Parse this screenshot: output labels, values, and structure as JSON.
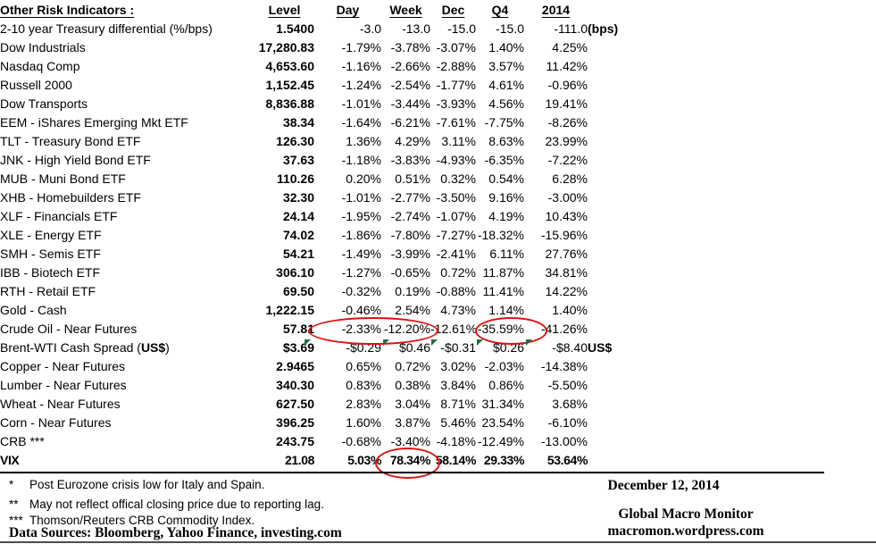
{
  "table": {
    "title": "Other Risk Indicators :",
    "columns": [
      "Level",
      "Day",
      "Week",
      "Dec",
      "Q4",
      "2014"
    ],
    "rows": [
      {
        "label": "2-10 year Treasury differential (%/bps)",
        "level": "1.5400",
        "day": "-3.0",
        "week": "-13.0",
        "dec": "-15.0",
        "q4": "-15.0",
        "y2014": "-111.0",
        "note": "(bps)"
      },
      {
        "label": "Dow Industrials",
        "level": "17,280.83",
        "day": "-1.79%",
        "week": "-3.78%",
        "dec": "-3.07%",
        "q4": "1.40%",
        "y2014": "4.25%"
      },
      {
        "label": "Nasdaq Comp",
        "level": "4,653.60",
        "day": "-1.16%",
        "week": "-2.66%",
        "dec": "-2.88%",
        "q4": "3.57%",
        "y2014": "11.42%"
      },
      {
        "label": "Russell 2000",
        "level": "1,152.45",
        "day": "-1.24%",
        "week": "-2.54%",
        "dec": "-1.77%",
        "q4": "4.61%",
        "y2014": "-0.96%"
      },
      {
        "label": "Dow Transports",
        "level": "8,836.88",
        "day": "-1.01%",
        "week": "-3.44%",
        "dec": "-3.93%",
        "q4": "4.56%",
        "y2014": "19.41%"
      },
      {
        "label": "EEM - iShares Emerging Mkt ETF",
        "level": "38.34",
        "day": "-1.64%",
        "week": "-6.21%",
        "dec": "-7.61%",
        "q4": "-7.75%",
        "y2014": "-8.26%"
      },
      {
        "label": "TLT - Treasury Bond ETF",
        "level": "126.30",
        "day": "1.36%",
        "week": "4.29%",
        "dec": "3.11%",
        "q4": "8.63%",
        "y2014": "23.99%"
      },
      {
        "label": "JNK - High Yield Bond ETF",
        "level": "37.63",
        "day": "-1.18%",
        "week": "-3.83%",
        "dec": "-4.93%",
        "q4": "-6.35%",
        "y2014": "-7.22%"
      },
      {
        "label": "MUB - Muni Bond ETF",
        "level": "110.26",
        "day": "0.20%",
        "week": "0.51%",
        "dec": "0.32%",
        "q4": "0.54%",
        "y2014": "6.28%"
      },
      {
        "label": "XHB - Homebuilders ETF",
        "level": "32.30",
        "day": "-1.01%",
        "week": "-2.77%",
        "dec": "-3.50%",
        "q4": "9.16%",
        "y2014": "-3.00%"
      },
      {
        "label": "XLF - Financials ETF",
        "level": "24.14",
        "day": "-1.95%",
        "week": "-2.74%",
        "dec": "-1.07%",
        "q4": "4.19%",
        "y2014": "10.43%"
      },
      {
        "label": "XLE - Energy ETF",
        "level": "74.02",
        "day": "-1.86%",
        "week": "-7.80%",
        "dec": "-7.27%",
        "q4": "-18.32%",
        "y2014": "-15.96%"
      },
      {
        "label": "SMH - Semis ETF",
        "level": "54.21",
        "day": "-1.49%",
        "week": "-3.99%",
        "dec": "-2.41%",
        "q4": "6.11%",
        "y2014": "27.76%"
      },
      {
        "label": "IBB - Biotech ETF",
        "level": "306.10",
        "day": "-1.27%",
        "week": "-0.65%",
        "dec": "0.72%",
        "q4": "11.87%",
        "y2014": "34.81%"
      },
      {
        "label": "RTH - Retail ETF",
        "level": "69.50",
        "day": "-0.32%",
        "week": "0.19%",
        "dec": "-0.88%",
        "q4": "11.41%",
        "y2014": "14.22%"
      },
      {
        "label": "Gold - Cash",
        "level": "1,222.15",
        "day": "-0.46%",
        "week": "2.54%",
        "dec": "4.73%",
        "q4": "1.14%",
        "y2014": "1.40%"
      },
      {
        "label": "Crude Oil - Near Futures",
        "level": "57.81",
        "day": "-2.33%",
        "week": "-12.20%",
        "dec": "-12.61%",
        "q4": "-35.59%",
        "y2014": "-41.26%"
      },
      {
        "label": "Brent-WTI Cash Spread (US$)",
        "label_parts": [
          {
            "t": "Brent-WTI Cash Spread (",
            "b": false
          },
          {
            "t": "US$",
            "b": true
          },
          {
            "t": ")",
            "b": false
          }
        ],
        "level": "$3.69",
        "day": "-$0.29",
        "week": "$0.46",
        "dec": "-$0.31",
        "q4": "$0.26",
        "y2014": "-$8.40",
        "note": "US$",
        "error_markers": true
      },
      {
        "label": "Copper - Near Futures",
        "level": "2.9465",
        "day": "0.65%",
        "week": "0.72%",
        "dec": "3.02%",
        "q4": "-2.03%",
        "y2014": "-14.38%"
      },
      {
        "label": "Lumber - Near Futures",
        "level": "340.30",
        "day": "0.83%",
        "week": "0.38%",
        "dec": "3.84%",
        "q4": "0.86%",
        "y2014": "-5.50%"
      },
      {
        "label": "Wheat - Near Futures",
        "level": "627.50",
        "day": "2.83%",
        "week": "3.04%",
        "dec": "8.71%",
        "q4": "31.34%",
        "y2014": "3.68%"
      },
      {
        "label": "Corn - Near Futures",
        "level": "396.25",
        "day": "1.60%",
        "week": "3.87%",
        "dec": "5.46%",
        "q4": "23.54%",
        "y2014": "-6.10%"
      },
      {
        "label": "CRB ***",
        "level": "243.75",
        "day": "-0.68%",
        "week": "-3.40%",
        "dec": "-4.18%",
        "q4": "-12.49%",
        "y2014": "-13.00%"
      },
      {
        "label": "VIX",
        "level": "21.08",
        "day": "5.03%",
        "week": "78.34%",
        "dec": "58.14%",
        "q4": "29.33%",
        "y2014": "53.64%",
        "bold": true
      }
    ]
  },
  "footnotes": [
    {
      "marker": "*",
      "text": "Post Eurozone crisis low for Italy and Spain."
    },
    {
      "marker": "**",
      "text": "May not reflect offical closing price due to reporting lag."
    },
    {
      "marker": "***",
      "text": "Thomson/Reuters CRB Commodity Index."
    }
  ],
  "footer": {
    "data_sources": "Data Sources:  Bloomberg,  Yahoo Finance, investing.com",
    "date": "December 12, 2014",
    "site_name": "Global Macro Monitor",
    "site_url": "macromon.wordpress.com"
  },
  "annotations": {
    "circle_color": "#e01010",
    "triangle_color": "#1e7145",
    "circled_values": [
      {
        "row": "Crude Oil - Near Futures",
        "columns": [
          "Day",
          "Week"
        ],
        "values": [
          "-2.33%",
          "-12.20%"
        ]
      },
      {
        "row": "Crude Oil - Near Futures",
        "columns": [
          "Q4"
        ],
        "values": [
          "-35.59%"
        ]
      },
      {
        "row": "VIX",
        "columns": [
          "Week"
        ],
        "values": [
          "78.34%"
        ]
      }
    ]
  }
}
